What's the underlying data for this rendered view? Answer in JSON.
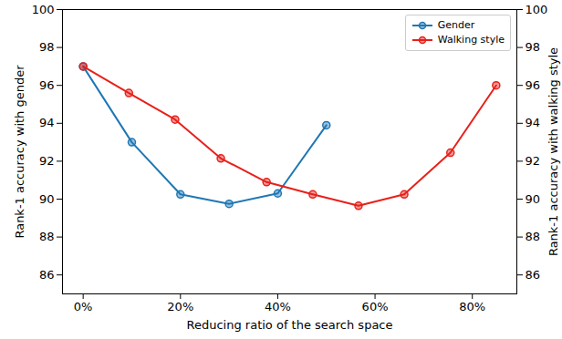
{
  "chart_data": {
    "type": "line",
    "xlabel": "Reducing ratio of the search space",
    "ylabel": "Rank-1 accuracy with gender",
    "y2label": "Rank-1 accuracy with walking style",
    "xlim": [
      -4.25,
      89.15
    ],
    "xticks": [
      {
        "value": 0,
        "label": "0%"
      },
      {
        "value": 20,
        "label": "20%"
      },
      {
        "value": 40,
        "label": "40%"
      },
      {
        "value": 60,
        "label": "60%"
      },
      {
        "value": 80,
        "label": "80%"
      }
    ],
    "ylim": [
      85,
      100
    ],
    "yticks": [
      86,
      88,
      90,
      92,
      94,
      96,
      98,
      100
    ],
    "y2lim": [
      85,
      100
    ],
    "y2ticks": [
      86,
      88,
      90,
      92,
      94,
      96,
      98,
      100
    ],
    "legend": "upper right",
    "grid": false,
    "series": [
      {
        "name": "Gender",
        "color": "#1f77b4",
        "marker": "circle",
        "x": [
          0,
          10,
          20,
          30,
          40,
          50
        ],
        "values": [
          97.0,
          93.0,
          90.25,
          89.75,
          90.3,
          93.9
        ]
      },
      {
        "name": "Walking style",
        "color": "#e8201a",
        "marker": "circle",
        "axis": "y2",
        "x": [
          0,
          9.4,
          18.9,
          28.3,
          37.7,
          47.2,
          56.6,
          66.0,
          75.5,
          84.9
        ],
        "values": [
          97.0,
          95.6,
          94.2,
          92.15,
          90.9,
          90.25,
          89.65,
          90.25,
          92.45,
          96.0
        ]
      }
    ]
  }
}
